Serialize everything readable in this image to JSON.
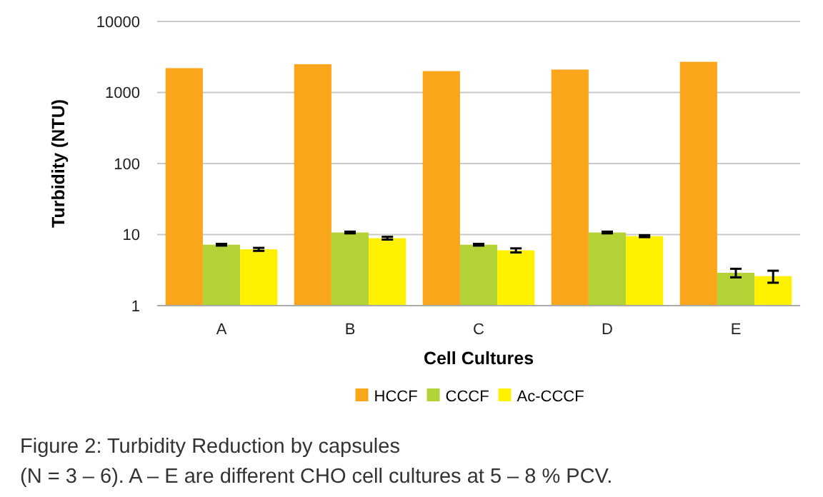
{
  "chart_data": {
    "type": "bar",
    "xlabel": "Cell Cultures",
    "ylabel": "Turbidity (NTU)",
    "categories": [
      "A",
      "B",
      "C",
      "D",
      "E"
    ],
    "log": true,
    "ylim": [
      1,
      10000
    ],
    "yticks": [
      1,
      10,
      100,
      1000,
      10000
    ],
    "grid": "y",
    "legend": "bottom",
    "series": [
      {
        "name": "HCCF",
        "color": "#faa61a",
        "values": [
          2200,
          2500,
          2000,
          2100,
          2700
        ]
      },
      {
        "name": "CCCF",
        "color": "#b2d235",
        "values": [
          7.2,
          10.7,
          7.2,
          10.7,
          2.9
        ],
        "errors": [
          0.2,
          0.3,
          0.2,
          0.3,
          [
            2.5,
            3.3
          ]
        ]
      },
      {
        "name": "Ac-CCCF",
        "color": "#fff200",
        "values": [
          6.2,
          8.9,
          6.0,
          9.5,
          2.6
        ],
        "errors": [
          0.3,
          0.4,
          0.4,
          0.3,
          [
            2.1,
            3.1
          ]
        ]
      }
    ],
    "annotations": [
      "Figure 2: Turbidity Reduction by capsules",
      "(N = 3 – 6). A – E are different CHO cell cultures at 5 – 8 % PCV."
    ]
  }
}
